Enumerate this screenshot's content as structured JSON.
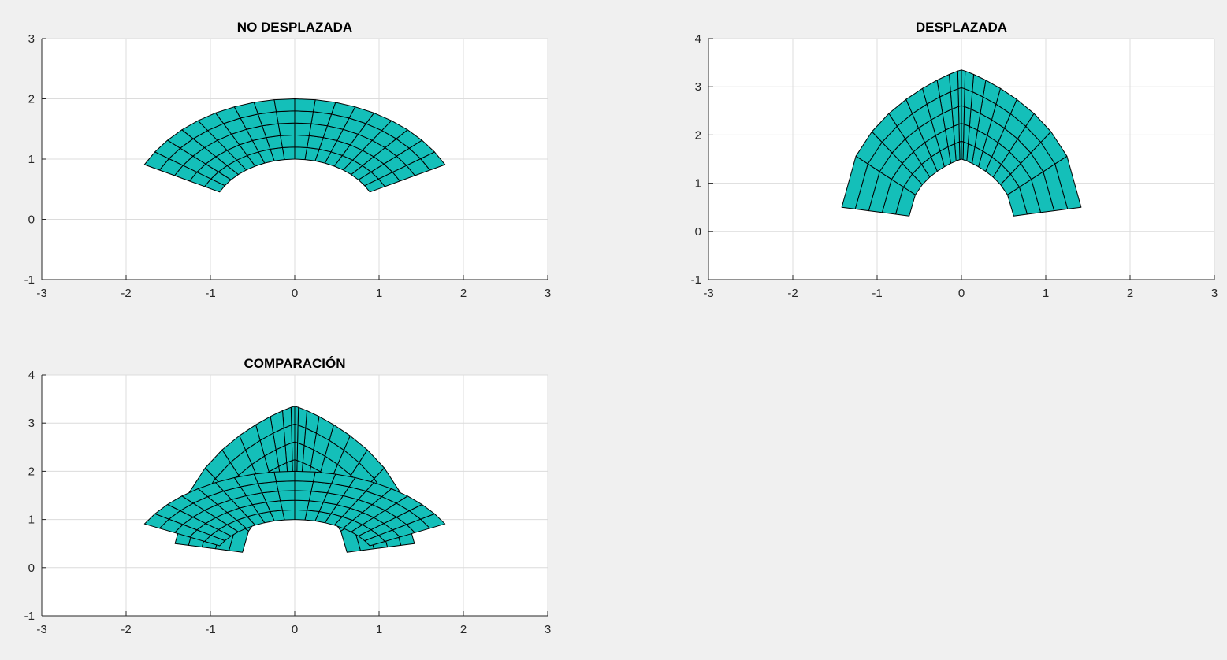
{
  "figure": {
    "background": "#f0f0f0",
    "axes_background": "#ffffff"
  },
  "chart_data": [
    {
      "type": "mesh",
      "title": "NO DESPLAZADA",
      "xlim": [
        -3,
        3
      ],
      "ylim": [
        -1,
        3
      ],
      "xticks": [
        -3,
        -2,
        -1,
        0,
        1,
        2,
        3
      ],
      "yticks": [
        -1,
        0,
        1,
        2,
        3
      ],
      "grid": true,
      "face_color": "#14bfb9",
      "mesh": {
        "shape": "undisplaced",
        "r_inner": 1.0,
        "r_outer": 2.0,
        "theta_start_deg": 27,
        "theta_end_deg": 153,
        "radial_divisions": 5,
        "angular_divisions": 18
      }
    },
    {
      "type": "mesh",
      "title": "DESPLAZADA",
      "xlim": [
        -3,
        3
      ],
      "ylim": [
        -1,
        4
      ],
      "xticks": [
        -3,
        -2,
        -1,
        0,
        1,
        2,
        3
      ],
      "yticks": [
        -1,
        0,
        1,
        2,
        3,
        4
      ],
      "grid": true,
      "face_color": "#14bfb9",
      "mesh": {
        "shape": "displaced",
        "r_inner": 1.0,
        "r_outer": 2.0,
        "theta_start_deg": 27,
        "theta_end_deg": 153,
        "radial_divisions": 5,
        "angular_divisions": 18
      }
    },
    {
      "type": "mesh",
      "title": "COMPARACIÓN",
      "xlim": [
        -3,
        3
      ],
      "ylim": [
        -1,
        4
      ],
      "xticks": [
        -3,
        -2,
        -1,
        0,
        1,
        2,
        3
      ],
      "yticks": [
        -1,
        0,
        1,
        2,
        3,
        4
      ],
      "grid": true,
      "face_color": "#14bfb9",
      "mesh": {
        "shape": "both",
        "r_inner": 1.0,
        "r_outer": 2.0,
        "theta_start_deg": 27,
        "theta_end_deg": 153,
        "radial_divisions": 5,
        "angular_divisions": 18
      }
    }
  ]
}
